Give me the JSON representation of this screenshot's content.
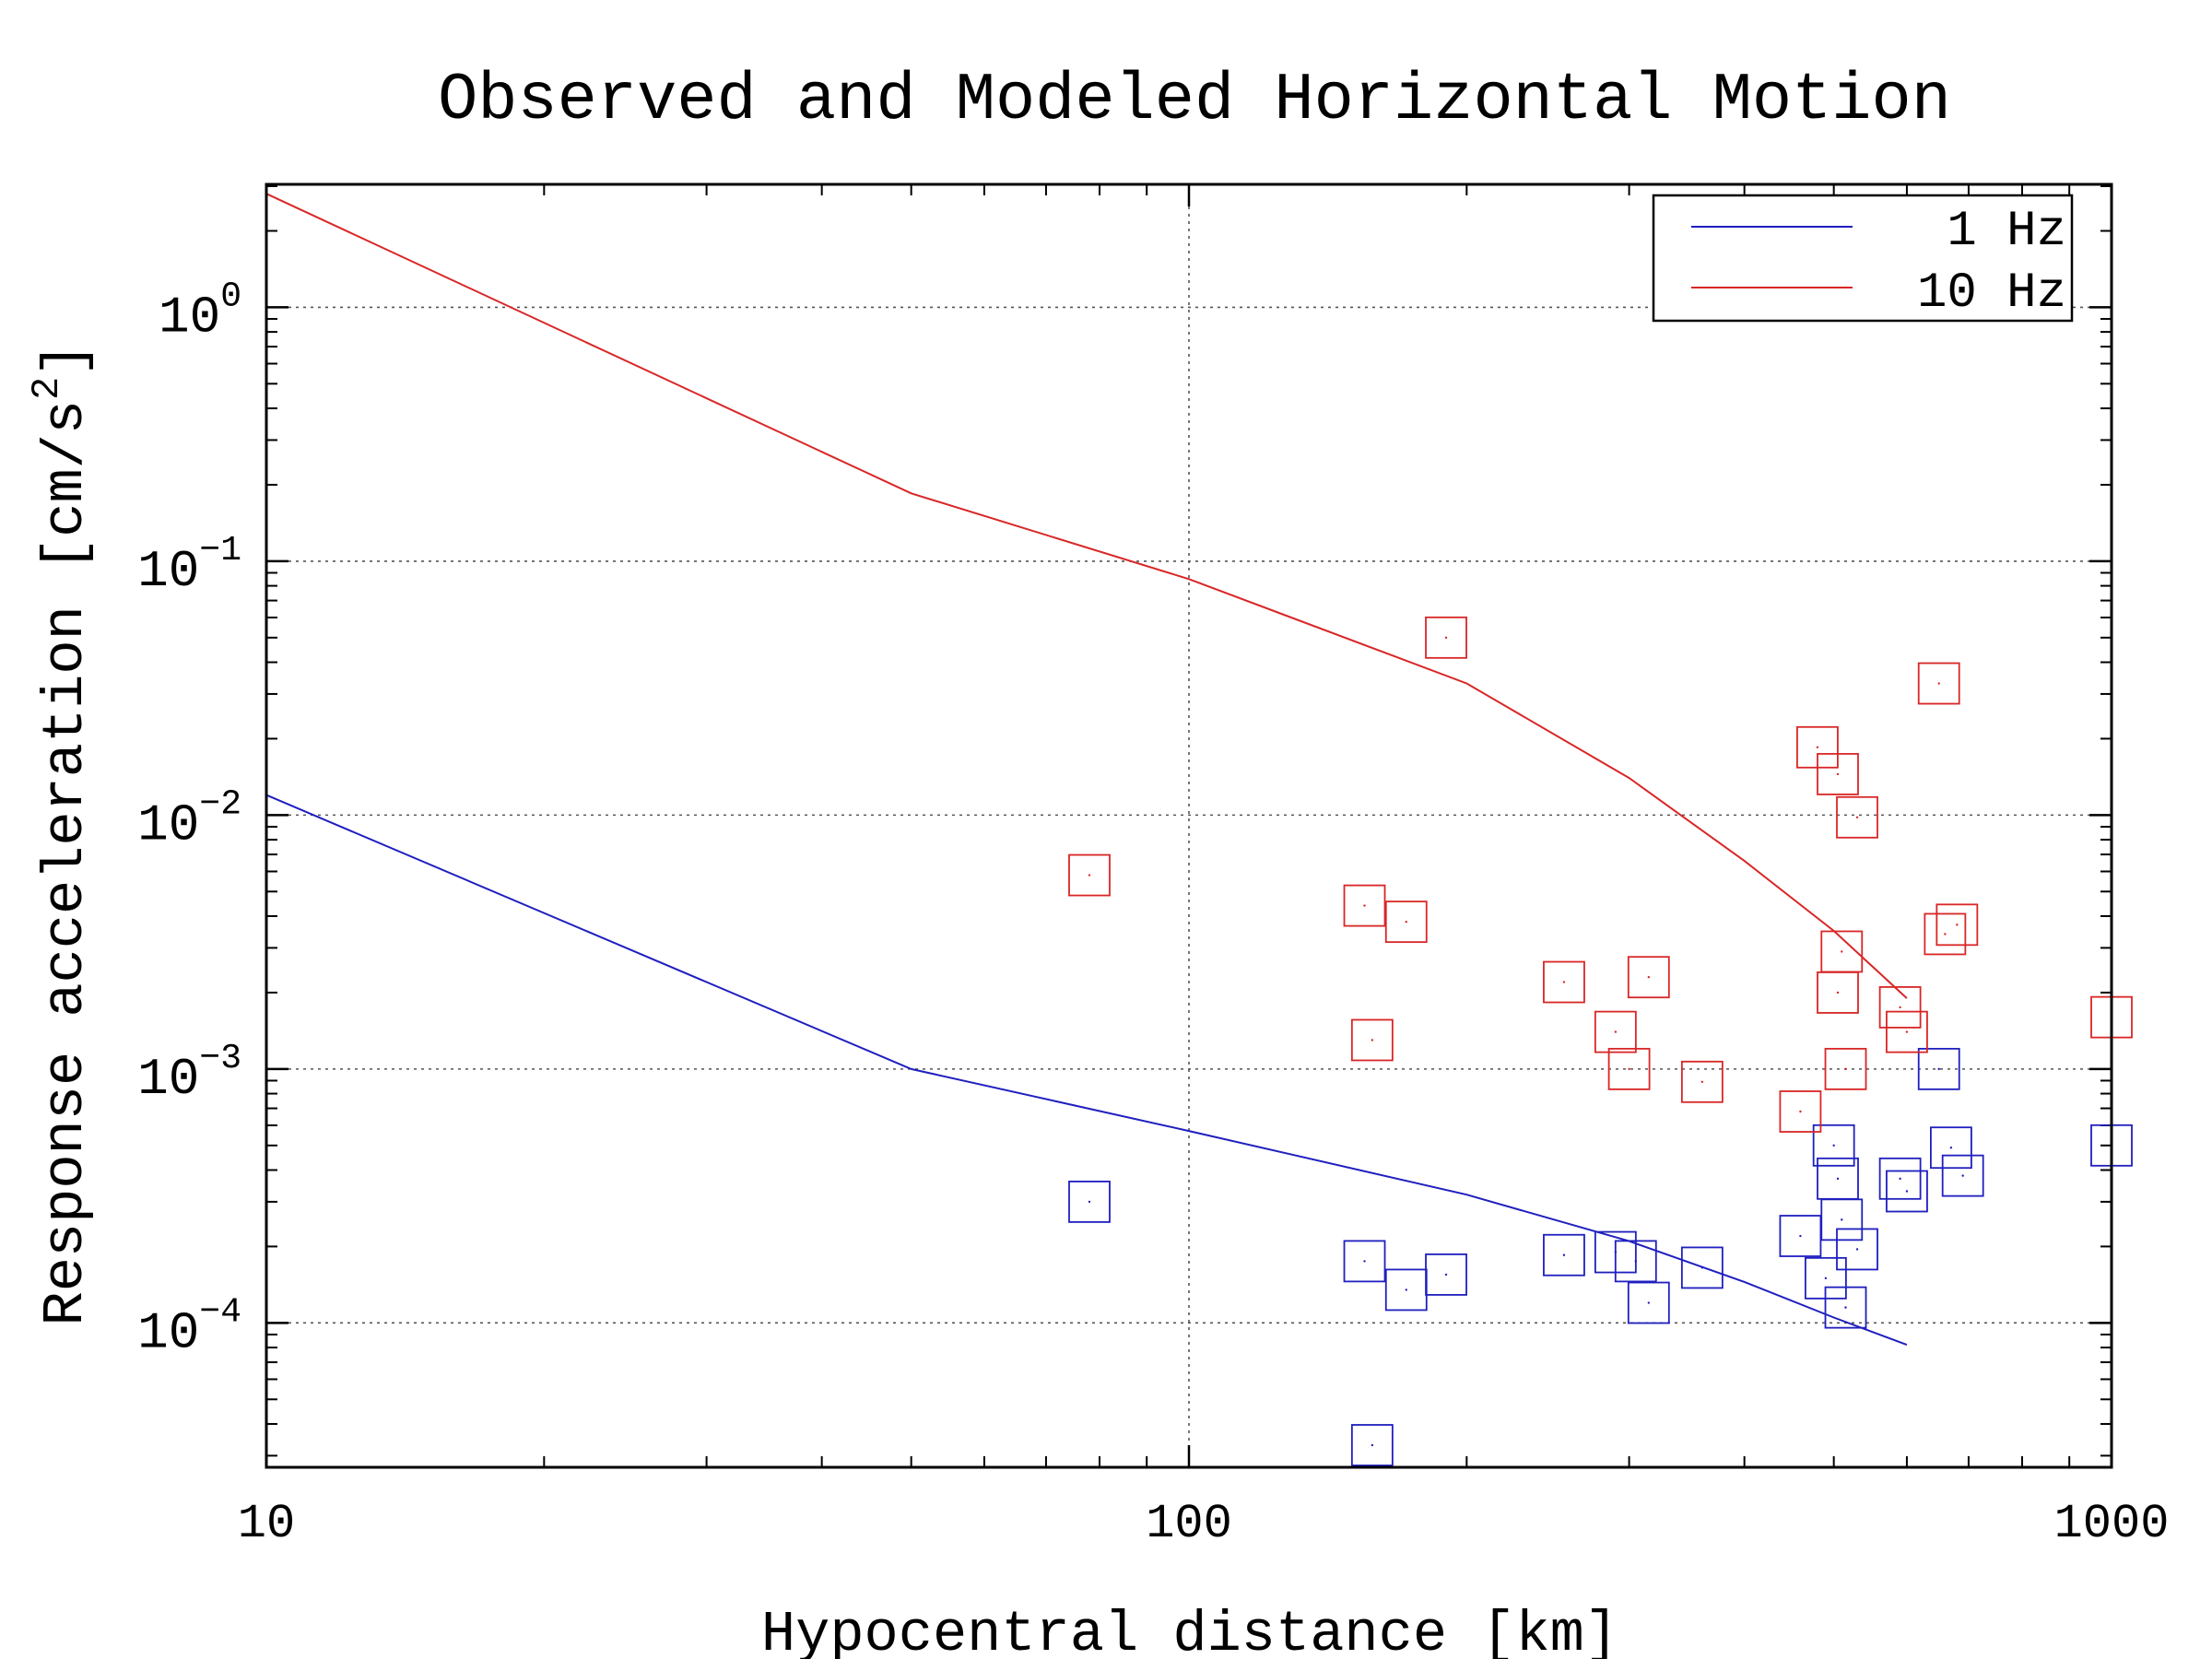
{
  "chart_data": {
    "type": "scatter",
    "title": "Observed and Modeled Horizontal Motion",
    "xlabel": "Hypocentral distance [km]",
    "ylabel": "Response acceleration [cm/s",
    "ylabel_sup": "2",
    "ylabel_end": "]",
    "x_scale": "log",
    "y_scale": "log",
    "xlim": [
      10,
      1000
    ],
    "ylim": [
      2.7e-05,
      3.05
    ],
    "x_ticks": [
      {
        "value": 10,
        "label": "10"
      },
      {
        "value": 100,
        "label": "100"
      },
      {
        "value": 1000,
        "label": "1000"
      }
    ],
    "y_ticks": [
      {
        "value": 1,
        "base": "10",
        "exp": "0"
      },
      {
        "value": 0.1,
        "base": "10",
        "exp": "−1"
      },
      {
        "value": 0.01,
        "base": "10",
        "exp": "−2"
      },
      {
        "value": 0.001,
        "base": "10",
        "exp": "−3"
      },
      {
        "value": 0.0001,
        "base": "10",
        "exp": "−4"
      }
    ],
    "grid": true,
    "legend_position": "top-right",
    "series": [
      {
        "name": "1 Hz",
        "color": "#1f1fbf",
        "model_line": {
          "x": [
            10,
            50,
            100,
            200,
            300,
            400,
            500,
            600
          ],
          "y": [
            0.012,
            0.001,
            0.00057,
            0.00032,
            0.00021,
            0.000145,
            0.000105,
            8.2e-05
          ]
        },
        "observed": {
          "x": [
            78,
            155,
            158,
            172,
            190,
            255,
            290,
            305,
            315,
            360,
            460,
            490,
            500,
            505,
            510,
            515,
            530,
            590,
            600,
            650,
            670,
            690,
            1000
          ],
          "y": [
            0.0003,
            0.000175,
            3.3e-05,
            0.000135,
            0.000155,
            0.000185,
            0.00019,
            0.000175,
            0.00012,
            0.000165,
            0.00022,
            0.00015,
            0.0005,
            0.00037,
            0.000255,
            0.000115,
            0.000195,
            0.00037,
            0.00033,
            0.001,
            0.00049,
            0.00038,
            0.0005
          ]
        }
      },
      {
        "name": "10 Hz",
        "color": "#d92626",
        "model_line": {
          "x": [
            10,
            50,
            100,
            200,
            300,
            400,
            500,
            600
          ],
          "y": [
            2.8,
            0.185,
            0.085,
            0.033,
            0.014,
            0.0066,
            0.0035,
            0.0019
          ]
        },
        "observed": {
          "x": [
            78,
            155,
            158,
            172,
            190,
            255,
            290,
            300,
            315,
            360,
            460,
            480,
            505,
            505,
            510,
            515,
            530,
            590,
            600,
            650,
            660,
            680,
            1000
          ],
          "y": [
            0.0058,
            0.0044,
            0.0013,
            0.0038,
            0.05,
            0.0022,
            0.0014,
            0.001,
            0.0023,
            0.00089,
            0.00068,
            0.0185,
            0.0145,
            0.002,
            0.0029,
            0.001,
            0.0098,
            0.00175,
            0.0014,
            0.033,
            0.0034,
            0.0037,
            0.0016
          ]
        }
      }
    ]
  }
}
